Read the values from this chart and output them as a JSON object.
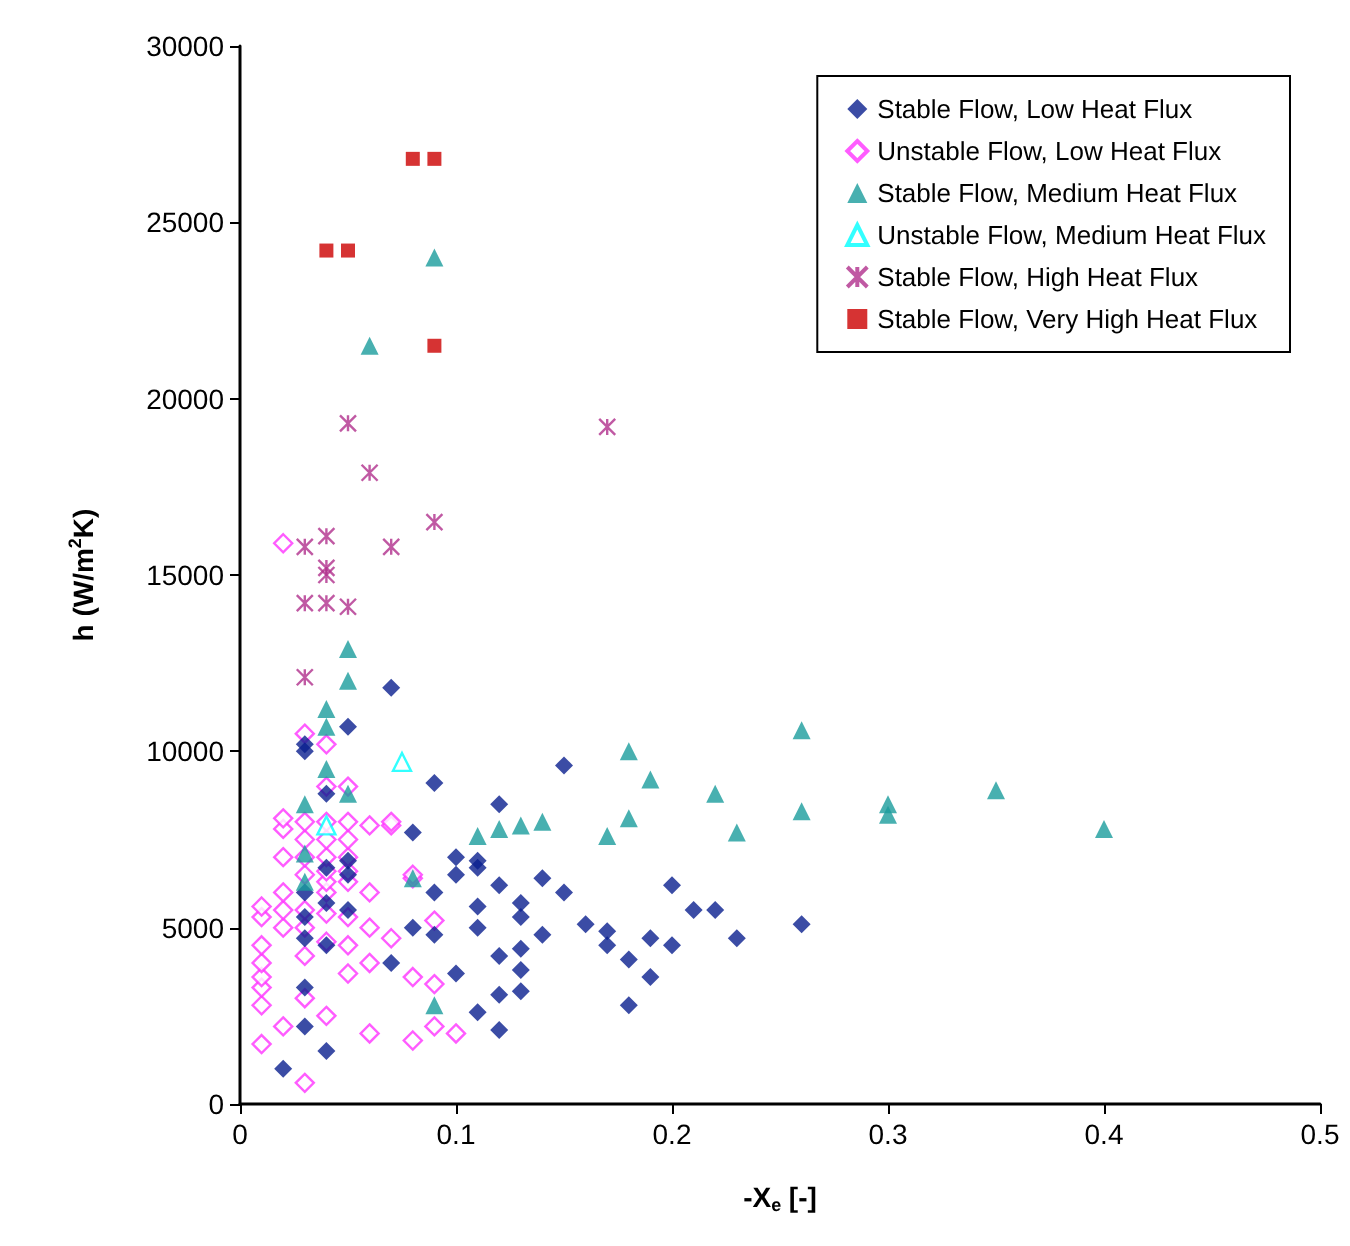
{
  "chart_data": {
    "type": "scatter",
    "xlabel": "-X$_{e}$ [-]",
    "ylabel": "h (W/m$^{2}$K)",
    "xlim": [
      0,
      0.5
    ],
    "xticks": [
      0,
      0.1,
      0.2,
      0.3,
      0.4,
      0.5
    ],
    "ylim": [
      0,
      30000
    ],
    "yticks": [
      0,
      5000,
      10000,
      15000,
      20000,
      25000,
      30000
    ],
    "grid": false,
    "legend": "top right",
    "series": [
      {
        "name": "Stable Flow, Low Heat Flux",
        "color": "#0a1f8f",
        "marker": "diamond",
        "x": [
          0.02,
          0.03,
          0.04,
          0.03,
          0.03,
          0.03,
          0.03,
          0.03,
          0.03,
          0.04,
          0.04,
          0.04,
          0.04,
          0.05,
          0.05,
          0.05,
          0.05,
          0.07,
          0.07,
          0.08,
          0.08,
          0.09,
          0.09,
          0.09,
          0.1,
          0.1,
          0.1,
          0.11,
          0.11,
          0.11,
          0.11,
          0.11,
          0.12,
          0.12,
          0.12,
          0.12,
          0.12,
          0.13,
          0.13,
          0.13,
          0.13,
          0.13,
          0.14,
          0.14,
          0.15,
          0.15,
          0.16,
          0.17,
          0.17,
          0.18,
          0.18,
          0.19,
          0.19,
          0.2,
          0.2,
          0.21,
          0.22,
          0.23,
          0.26
        ],
        "values": [
          1000,
          2200,
          1500,
          3300,
          4700,
          5300,
          6000,
          10000,
          10200,
          4500,
          5700,
          6700,
          8800,
          5500,
          6500,
          6900,
          10700,
          11800,
          4000,
          7700,
          5000,
          4800,
          9100,
          6000,
          3700,
          6500,
          7000,
          2600,
          5000,
          5600,
          6700,
          6900,
          2100,
          3100,
          4200,
          6200,
          8500,
          3200,
          3800,
          4400,
          5300,
          5700,
          4800,
          6400,
          9600,
          6000,
          5100,
          4900,
          4500,
          2800,
          4100,
          3600,
          4700,
          6200,
          4500,
          5500,
          5500,
          4700,
          5100
        ]
      },
      {
        "name": "Unstable Flow, Low Heat Flux",
        "color": "#ff33ff",
        "marker": "diamond-open",
        "x": [
          0.01,
          0.01,
          0.01,
          0.01,
          0.01,
          0.01,
          0.01,
          0.01,
          0.02,
          0.02,
          0.02,
          0.02,
          0.02,
          0.02,
          0.02,
          0.02,
          0.03,
          0.03,
          0.03,
          0.03,
          0.03,
          0.03,
          0.03,
          0.03,
          0.03,
          0.03,
          0.04,
          0.04,
          0.04,
          0.04,
          0.04,
          0.04,
          0.04,
          0.04,
          0.04,
          0.04,
          0.04,
          0.05,
          0.05,
          0.05,
          0.05,
          0.05,
          0.05,
          0.05,
          0.05,
          0.05,
          0.06,
          0.06,
          0.06,
          0.06,
          0.06,
          0.07,
          0.07,
          0.07,
          0.08,
          0.08,
          0.08,
          0.08,
          0.09,
          0.09,
          0.09,
          0.1
        ],
        "values": [
          1700,
          2800,
          3300,
          3600,
          4000,
          4500,
          5300,
          5600,
          2200,
          5000,
          5500,
          6000,
          7000,
          7800,
          8100,
          15900,
          600,
          3000,
          4200,
          5000,
          5500,
          6500,
          7000,
          7500,
          8000,
          10500,
          2500,
          4600,
          5400,
          6000,
          6300,
          6600,
          7000,
          7500,
          8000,
          9000,
          10200,
          3700,
          4500,
          5300,
          6300,
          6600,
          7000,
          7500,
          8000,
          9000,
          2000,
          4000,
          5000,
          6000,
          7900,
          4700,
          7900,
          8000,
          1800,
          3600,
          6400,
          6500,
          2200,
          3400,
          5200,
          2000
        ]
      },
      {
        "name": "Stable Flow, Medium Heat Flux",
        "color": "#1a9c9c",
        "marker": "triangle",
        "x": [
          0.03,
          0.03,
          0.03,
          0.04,
          0.04,
          0.04,
          0.05,
          0.05,
          0.05,
          0.06,
          0.08,
          0.09,
          0.09,
          0.11,
          0.12,
          0.13,
          0.14,
          0.17,
          0.18,
          0.18,
          0.19,
          0.22,
          0.23,
          0.26,
          0.26,
          0.3,
          0.3,
          0.35,
          0.4
        ],
        "values": [
          8500,
          7100,
          6300,
          11200,
          10700,
          9500,
          8800,
          12900,
          12000,
          21500,
          6400,
          24000,
          2800,
          7600,
          7800,
          7900,
          8000,
          7600,
          8100,
          10000,
          9200,
          8800,
          7700,
          10600,
          8300,
          8500,
          8200,
          8900,
          7800
        ]
      },
      {
        "name": "Unstable Flow, Medium Heat Flux",
        "color": "#00ffff",
        "marker": "triangle-open",
        "x": [
          0.075,
          0.04
        ],
        "values": [
          9700,
          7900
        ]
      },
      {
        "name": "Stable Flow, High Heat Flux",
        "color": "#b0308c",
        "marker": "cross",
        "x": [
          0.05,
          0.06,
          0.09,
          0.03,
          0.04,
          0.04,
          0.04,
          0.07,
          0.03,
          0.04,
          0.05,
          0.03,
          0.17
        ],
        "values": [
          19300,
          17900,
          16500,
          15800,
          16100,
          15200,
          15000,
          15800,
          14200,
          14200,
          14100,
          12100,
          19200
        ]
      },
      {
        "name": "Stable Flow, Very High Heat Flux",
        "color": "#cc0000",
        "marker": "square",
        "x": [
          0.04,
          0.05,
          0.08,
          0.09,
          0.09
        ],
        "values": [
          24200,
          24200,
          26800,
          26800,
          21500
        ]
      }
    ]
  }
}
